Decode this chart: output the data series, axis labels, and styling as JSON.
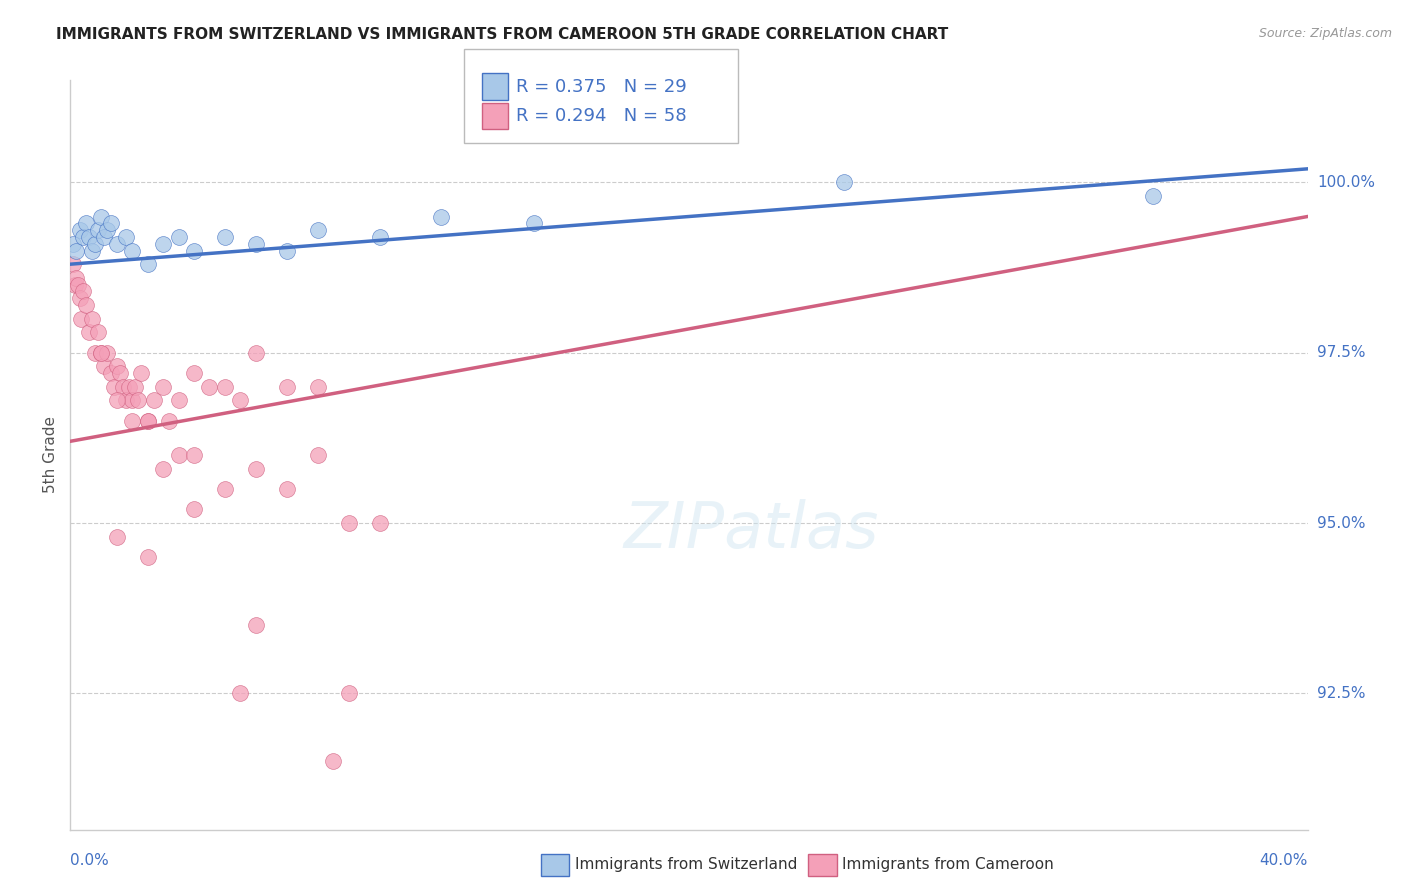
{
  "title": "IMMIGRANTS FROM SWITZERLAND VS IMMIGRANTS FROM CAMEROON 5TH GRADE CORRELATION CHART",
  "source": "Source: ZipAtlas.com",
  "ylabel": "5th Grade",
  "xlim": [
    0.0,
    40.0
  ],
  "ylim": [
    90.5,
    101.5
  ],
  "yticks": [
    92.5,
    95.0,
    97.5,
    100.0
  ],
  "ytick_labels": [
    "92.5%",
    "95.0%",
    "97.5%",
    "100.0%"
  ],
  "R_swiss": 0.375,
  "N_swiss": 29,
  "R_cam": 0.294,
  "N_cam": 58,
  "color_swiss": "#a8c8e8",
  "color_cam": "#f4a0b8",
  "trendline_swiss": "#4472c4",
  "trendline_cam": "#d06080",
  "legend_label_swiss": "Immigrants from Switzerland",
  "legend_label_cam": "Immigrants from Cameroon",
  "swiss_x": [
    0.1,
    0.2,
    0.3,
    0.4,
    0.5,
    0.6,
    0.7,
    0.8,
    0.9,
    1.0,
    1.1,
    1.2,
    1.3,
    1.5,
    1.8,
    2.0,
    2.5,
    3.0,
    3.5,
    4.0,
    5.0,
    6.0,
    7.0,
    8.0,
    10.0,
    12.0,
    15.0,
    25.0,
    35.0
  ],
  "swiss_y": [
    99.1,
    99.0,
    99.3,
    99.2,
    99.4,
    99.2,
    99.0,
    99.1,
    99.3,
    99.5,
    99.2,
    99.3,
    99.4,
    99.1,
    99.2,
    99.0,
    98.8,
    99.1,
    99.2,
    99.0,
    99.2,
    99.1,
    99.0,
    99.3,
    99.2,
    99.5,
    99.4,
    100.0,
    99.8
  ],
  "cam_x": [
    0.1,
    0.15,
    0.2,
    0.25,
    0.3,
    0.35,
    0.4,
    0.5,
    0.6,
    0.7,
    0.8,
    0.9,
    1.0,
    1.1,
    1.2,
    1.3,
    1.4,
    1.5,
    1.6,
    1.7,
    1.8,
    1.9,
    2.0,
    2.1,
    2.2,
    2.3,
    2.5,
    2.7,
    3.0,
    3.2,
    3.5,
    4.0,
    4.5,
    5.0,
    5.5,
    6.0,
    7.0,
    8.0,
    1.0,
    1.5,
    2.0,
    2.5,
    3.0,
    3.5,
    4.0,
    5.0,
    6.0,
    7.0,
    8.0,
    9.0,
    10.0,
    1.5,
    2.5,
    4.0,
    6.0,
    9.0,
    5.5,
    8.5
  ],
  "cam_y": [
    98.8,
    98.5,
    98.6,
    98.5,
    98.3,
    98.0,
    98.4,
    98.2,
    97.8,
    98.0,
    97.5,
    97.8,
    97.5,
    97.3,
    97.5,
    97.2,
    97.0,
    97.3,
    97.2,
    97.0,
    96.8,
    97.0,
    96.8,
    97.0,
    96.8,
    97.2,
    96.5,
    96.8,
    97.0,
    96.5,
    96.8,
    97.2,
    97.0,
    97.0,
    96.8,
    97.5,
    97.0,
    97.0,
    97.5,
    96.8,
    96.5,
    96.5,
    95.8,
    96.0,
    96.0,
    95.5,
    95.8,
    95.5,
    96.0,
    95.0,
    95.0,
    94.8,
    94.5,
    95.2,
    93.5,
    92.5,
    92.5,
    91.5
  ],
  "swiss_trend_x0": 0.0,
  "swiss_trend_y0": 98.8,
  "swiss_trend_x1": 40.0,
  "swiss_trend_y1": 100.2,
  "cam_trend_x0": 0.0,
  "cam_trend_y0": 96.2,
  "cam_trend_x1": 40.0,
  "cam_trend_y1": 99.5
}
